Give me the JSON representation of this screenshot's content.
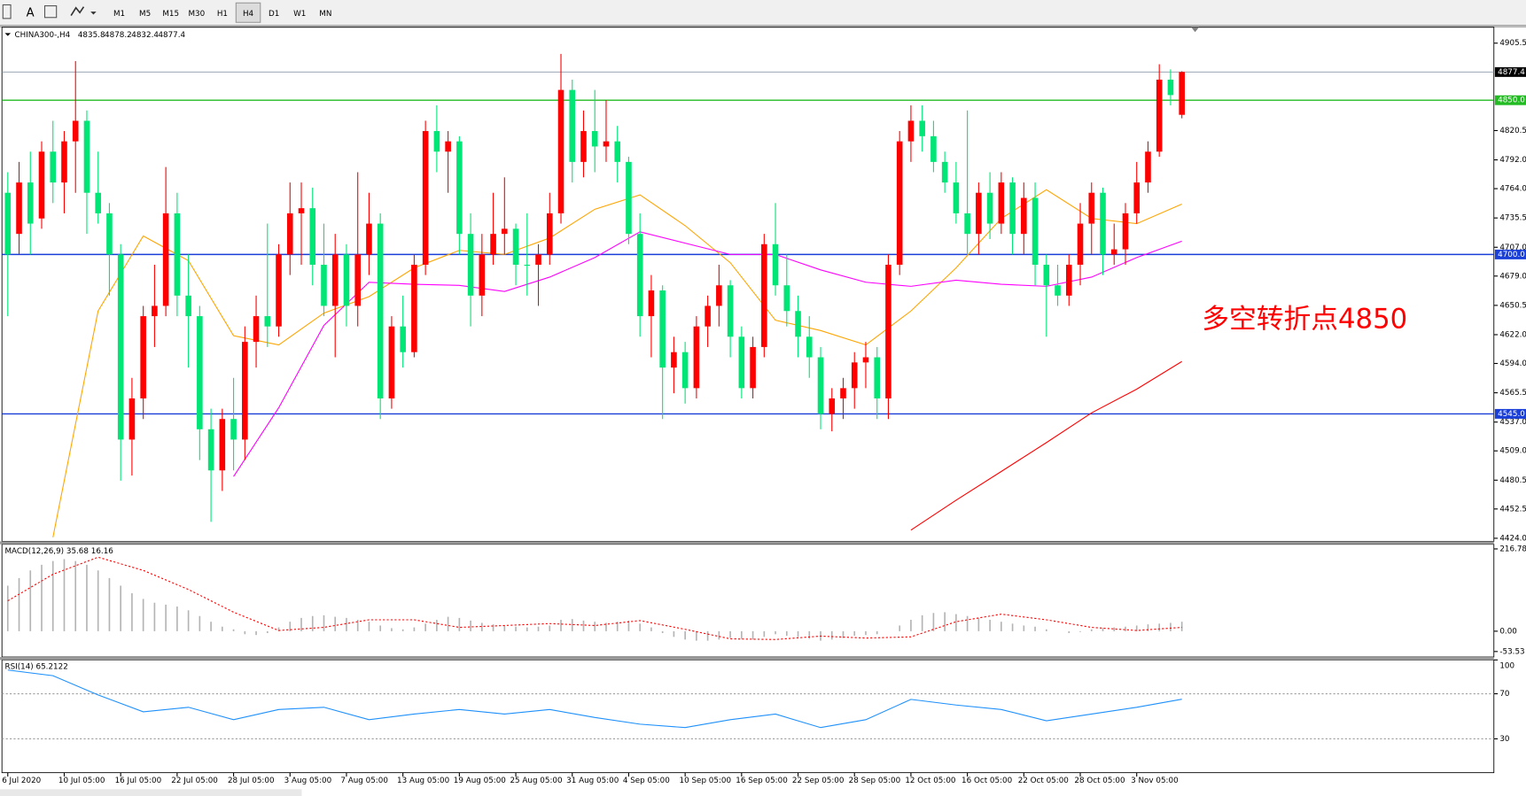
{
  "toolbar": {
    "font_tool": "A",
    "timeframes": [
      "M1",
      "M5",
      "M15",
      "M30",
      "H1",
      "H4",
      "D1",
      "W1",
      "MN"
    ],
    "active": "H4"
  },
  "chart_data": [
    {
      "type": "candlestick",
      "symbol": "CHINA300-,H4",
      "ohlc": [
        4835.8,
        4878.2,
        4832.4,
        4877.4
      ],
      "annotation": "多空转折点4850",
      "annotation_color": "#ff0000",
      "categories": [
        "6 Jul 2020",
        null,
        null,
        null,
        null,
        "10 Jul 05:00",
        null,
        null,
        null,
        null,
        "16 Jul 05:00",
        null,
        null,
        null,
        null,
        "22 Jul 05:00",
        null,
        null,
        null,
        null,
        "28 Jul 05:00",
        null,
        null,
        null,
        null,
        "3 Aug 05:00",
        null,
        null,
        null,
        null,
        "7 Aug 05:00",
        null,
        null,
        null,
        null,
        "13 Aug 05:00",
        null,
        null,
        null,
        null,
        "19 Aug 05:00",
        null,
        null,
        null,
        null,
        "25 Aug 05:00",
        null,
        null,
        null,
        null,
        "31 Aug 05:00",
        null,
        null,
        null,
        null,
        "4 Sep 05:00",
        null,
        null,
        null,
        null,
        "10 Sep 05:00",
        null,
        null,
        null,
        null,
        "16 Sep 05:00",
        null,
        null,
        null,
        null,
        "22 Sep 05:00",
        null,
        null,
        null,
        null,
        "28 Sep 05:00",
        null,
        null,
        null,
        null,
        "12 Oct 05:00",
        null,
        null,
        null,
        null,
        "16 Oct 05:00",
        null,
        null,
        null,
        null,
        "22 Oct 05:00",
        null,
        null,
        null,
        null,
        "28 Oct 05:00",
        null,
        null,
        null,
        null,
        "3 Nov 05:00",
        null,
        null,
        null,
        null
      ],
      "open": [
        4760,
        4720,
        4770,
        4735,
        4800,
        4770,
        4810,
        4830,
        4760,
        4740,
        4700,
        4520,
        4560,
        4640,
        4650,
        4740,
        4660,
        4640,
        4530,
        4490,
        4540,
        4520,
        4615,
        4640,
        4630,
        4700,
        4740,
        4745,
        4690,
        4650,
        4700,
        4650,
        4700,
        4730,
        4560,
        4630,
        4605,
        4690,
        4820,
        4800,
        4810,
        4720,
        4660,
        4700,
        4720,
        4725,
        4690,
        4690,
        4700,
        4740,
        4860,
        4790,
        4820,
        4805,
        4810,
        4790,
        4720,
        4640,
        4665,
        4590,
        4605,
        4570,
        4630,
        4650,
        4670,
        4620,
        4570,
        4610,
        4710,
        4670,
        4645,
        4620,
        4600,
        4545,
        4560,
        4570,
        4595,
        4600,
        4560,
        4690,
        4810,
        4830,
        4815,
        4790,
        4770,
        4740,
        4720,
        4760,
        4730,
        4770,
        4720,
        4755,
        4690,
        4670,
        4660,
        4690,
        4730,
        4760,
        4700,
        4705,
        4740,
        4770,
        4800,
        4870,
        4835.8
      ],
      "high": [
        4780,
        4790,
        4800,
        4810,
        4830,
        4820,
        4888,
        4840,
        4800,
        4750,
        4710,
        4580,
        4650,
        4690,
        4785,
        4760,
        4700,
        4650,
        4550,
        4550,
        4580,
        4630,
        4660,
        4730,
        4710,
        4770,
        4770,
        4765,
        4730,
        4720,
        4710,
        4780,
        4760,
        4740,
        4640,
        4660,
        4700,
        4830,
        4845,
        4820,
        4815,
        4740,
        4720,
        4760,
        4775,
        4730,
        4740,
        4710,
        4760,
        4895,
        4870,
        4840,
        4860,
        4850,
        4825,
        4795,
        4740,
        4680,
        4670,
        4620,
        4615,
        4640,
        4660,
        4690,
        4675,
        4630,
        4620,
        4720,
        4750,
        4700,
        4660,
        4640,
        4610,
        4570,
        4580,
        4605,
        4615,
        4610,
        4700,
        4820,
        4845,
        4845,
        4830,
        4800,
        4790,
        4840,
        4770,
        4780,
        4780,
        4775,
        4770,
        4770,
        4700,
        4690,
        4700,
        4750,
        4770,
        4765,
        4730,
        4750,
        4790,
        4810,
        4885,
        4880,
        4878.2
      ],
      "low": [
        4640,
        4700,
        4700,
        4725,
        4750,
        4740,
        4760,
        4720,
        4730,
        4660,
        4480,
        4485,
        4540,
        4610,
        4640,
        4640,
        4590,
        4500,
        4440,
        4470,
        4490,
        4500,
        4590,
        4610,
        4620,
        4680,
        4690,
        4670,
        4640,
        4600,
        4630,
        4630,
        4680,
        4540,
        4550,
        4590,
        4600,
        4680,
        4780,
        4760,
        4700,
        4630,
        4640,
        4690,
        4700,
        4670,
        4660,
        4650,
        4690,
        4730,
        4770,
        4775,
        4780,
        4790,
        4770,
        4710,
        4620,
        4600,
        4540,
        4565,
        4555,
        4560,
        4610,
        4630,
        4600,
        4560,
        4560,
        4600,
        4660,
        4630,
        4600,
        4580,
        4530,
        4528,
        4540,
        4550,
        4570,
        4540,
        4540,
        4680,
        4790,
        4800,
        4780,
        4760,
        4730,
        4700,
        4700,
        4715,
        4720,
        4700,
        4700,
        4670,
        4620,
        4650,
        4650,
        4670,
        4700,
        4680,
        4690,
        4690,
        4730,
        4760,
        4795,
        4845,
        4832.4
      ],
      "close": [
        4700,
        4770,
        4730,
        4800,
        4770,
        4810,
        4830,
        4760,
        4740,
        4700,
        4520,
        4560,
        4640,
        4650,
        4740,
        4660,
        4640,
        4530,
        4490,
        4540,
        4520,
        4615,
        4640,
        4630,
        4700,
        4740,
        4745,
        4690,
        4650,
        4700,
        4650,
        4700,
        4730,
        4560,
        4630,
        4605,
        4690,
        4820,
        4800,
        4810,
        4720,
        4660,
        4700,
        4720,
        4725,
        4690,
        4690,
        4700,
        4740,
        4860,
        4790,
        4820,
        4805,
        4810,
        4790,
        4720,
        4640,
        4665,
        4590,
        4605,
        4570,
        4630,
        4650,
        4670,
        4620,
        4570,
        4610,
        4710,
        4670,
        4645,
        4620,
        4600,
        4545,
        4560,
        4570,
        4595,
        4600,
        4560,
        4690,
        4810,
        4830,
        4815,
        4790,
        4770,
        4740,
        4720,
        4760,
        4730,
        4770,
        4720,
        4755,
        4690,
        4670,
        4660,
        4690,
        4730,
        4760,
        4700,
        4705,
        4740,
        4770,
        4800,
        4870,
        4855,
        4877.4
      ],
      "up_color": "#ff0000",
      "down_color": "#00e676",
      "ma": [
        {
          "color": "#ffa500",
          "x": [
            0,
            4,
            8,
            12,
            16,
            20,
            24,
            28,
            32,
            36,
            40,
            44,
            48,
            52,
            56,
            60,
            64,
            68,
            72,
            76,
            80,
            84,
            88,
            92,
            96,
            100,
            104
          ],
          "values": [
            null,
            4425,
            4645,
            4718,
            4694,
            4621,
            4612,
            4643,
            4659,
            4687,
            4704,
            4700,
            4716,
            4744,
            4758,
            4728,
            4692,
            4636,
            4626,
            4612,
            4645,
            4687,
            4735,
            4763,
            4735,
            4730,
            4749
          ]
        },
        {
          "color": "#ff00ff",
          "x": [
            0,
            4,
            8,
            12,
            16,
            20,
            24,
            28,
            32,
            36,
            40,
            44,
            48,
            52,
            56,
            60,
            64,
            68,
            72,
            76,
            80,
            84,
            88,
            92,
            96,
            100,
            104
          ],
          "values": [
            null,
            null,
            null,
            null,
            null,
            4484,
            4551,
            4631,
            4673,
            4671,
            4670,
            4664,
            4678,
            4697,
            4722,
            4711,
            4700,
            4700,
            4685,
            4673,
            4669,
            4675,
            4671,
            4669,
            4678,
            4697,
            4713
          ]
        },
        {
          "color": "#ff0000",
          "x": [
            0,
            4,
            8,
            12,
            16,
            20,
            24,
            28,
            32,
            36,
            40,
            44,
            48,
            52,
            56,
            60,
            64,
            68,
            72,
            76,
            80,
            84,
            88,
            92,
            96,
            100,
            104
          ],
          "values": [
            null,
            null,
            null,
            null,
            null,
            null,
            null,
            null,
            null,
            null,
            null,
            null,
            null,
            null,
            null,
            null,
            null,
            null,
            null,
            null,
            4432,
            4461,
            4489,
            4517,
            4546,
            4569,
            4596
          ]
        }
      ],
      "levels": [
        {
          "value": 4850,
          "label": "4850.0",
          "color": "#22bb22"
        },
        {
          "value": 4700,
          "label": "4700.0",
          "color": "#1a3fd9"
        },
        {
          "value": 4545,
          "label": "4545.0",
          "color": "#1a3fd9"
        }
      ],
      "last_price": 4877.4,
      "ylim": [
        4421,
        4921
      ],
      "yticks": [
        4905.5,
        4820.5,
        {
          "value": 4792,
          "label": "4792.0"
        },
        {
          "value": 4764,
          "label": "4764.0"
        },
        4735.5,
        {
          "value": 4707,
          "label": "4707.0"
        },
        {
          "value": 4679,
          "label": "4679.0"
        },
        4650.5,
        {
          "value": 4622,
          "label": "4622.0"
        },
        {
          "value": 4594,
          "label": "4594.0"
        },
        4565.5,
        {
          "value": 4537,
          "label": "4537.0"
        },
        {
          "value": 4509,
          "label": "4509.0"
        },
        4480.5,
        4452.5,
        {
          "value": 4424,
          "label": "4424.0"
        }
      ]
    },
    {
      "type": "macd",
      "label": "MACD(12,26,9) 35.68 16.16",
      "histogram": [
        120,
        140,
        160,
        175,
        185,
        190,
        185,
        175,
        160,
        140,
        120,
        100,
        85,
        75,
        70,
        65,
        55,
        40,
        25,
        12,
        5,
        -8,
        -10,
        -5,
        10,
        25,
        35,
        40,
        42,
        38,
        35,
        30,
        25,
        15,
        8,
        5,
        10,
        20,
        30,
        38,
        35,
        28,
        22,
        18,
        15,
        12,
        10,
        12,
        15,
        30,
        32,
        28,
        25,
        22,
        25,
        28,
        20,
        10,
        -5,
        -15,
        -22,
        -25,
        -25,
        -22,
        -18,
        -20,
        -22,
        -15,
        -8,
        -12,
        -15,
        -20,
        -25,
        -22,
        -18,
        -12,
        -10,
        -8,
        0,
        15,
        30,
        42,
        48,
        50,
        45,
        40,
        35,
        30,
        25,
        20,
        15,
        12,
        5,
        0,
        -5,
        -2,
        5,
        8,
        10,
        12,
        15,
        18,
        20,
        22,
        25
      ],
      "histogram_color": "#b4b4b4",
      "signal": {
        "color": "#ff0000",
        "x": [
          0,
          4,
          8,
          12,
          16,
          20,
          24,
          28,
          32,
          36,
          40,
          44,
          48,
          52,
          56,
          60,
          64,
          68,
          72,
          76,
          80,
          84,
          88,
          92,
          96,
          100,
          104
        ],
        "values": [
          80,
          150,
          195,
          160,
          110,
          50,
          2,
          10,
          30,
          30,
          10,
          15,
          20,
          15,
          28,
          5,
          -20,
          -22,
          -13,
          -18,
          -15,
          25,
          45,
          30,
          10,
          2,
          10
        ]
      },
      "ylim": [
        -68,
        229
      ],
      "yticks": [
        216.78,
        {
          "value": 0,
          "label": "0.00"
        },
        -53.53
      ]
    },
    {
      "type": "rsi",
      "label": "RSI(14) 65.2122",
      "color": "#1e90ff",
      "x": [
        0,
        4,
        8,
        12,
        16,
        20,
        24,
        28,
        32,
        36,
        40,
        44,
        48,
        52,
        56,
        60,
        64,
        68,
        72,
        76,
        80,
        84,
        88,
        92,
        96,
        100,
        104
      ],
      "values": [
        91,
        86,
        69,
        54,
        58,
        47,
        56,
        58,
        47,
        52,
        56,
        52,
        56,
        49,
        43,
        40,
        47,
        52,
        40,
        47,
        65,
        60,
        56,
        46,
        52,
        58,
        65.2122
      ],
      "ylim": [
        0,
        100
      ],
      "yticks": [
        100,
        70,
        30
      ]
    }
  ]
}
